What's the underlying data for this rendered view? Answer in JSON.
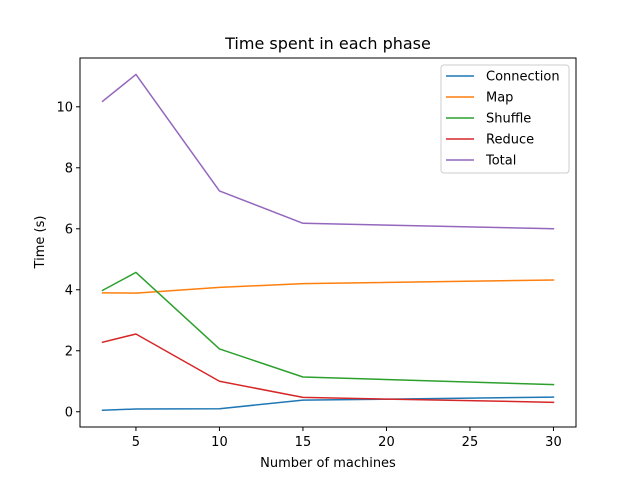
{
  "chart_data": {
    "type": "line",
    "title": "Time spent in each phase",
    "xlabel": "Number of machines",
    "ylabel": "Time (s)",
    "x": [
      3,
      5,
      10,
      15,
      30
    ],
    "xticks": [
      5,
      10,
      15,
      20,
      25,
      30
    ],
    "yticks": [
      0,
      2,
      4,
      6,
      8,
      10
    ],
    "xlim": [
      1.65,
      31.35
    ],
    "ylim": [
      -0.5,
      11.6
    ],
    "grid": false,
    "legend_position": "top-right",
    "series": [
      {
        "name": "Connection",
        "color": "#1f77b4",
        "values": [
          0.05,
          0.09,
          0.1,
          0.38,
          0.48
        ]
      },
      {
        "name": "Map",
        "color": "#ff7f0e",
        "values": [
          3.9,
          3.89,
          4.08,
          4.2,
          4.32
        ]
      },
      {
        "name": "Shuffle",
        "color": "#2ca02c",
        "values": [
          3.98,
          4.57,
          2.06,
          1.14,
          0.89
        ]
      },
      {
        "name": "Reduce",
        "color": "#d62728",
        "values": [
          2.28,
          2.55,
          1.0,
          0.47,
          0.31
        ]
      },
      {
        "name": "Total",
        "color": "#9467bd",
        "values": [
          10.18,
          11.06,
          7.24,
          6.18,
          6.0
        ]
      }
    ]
  }
}
